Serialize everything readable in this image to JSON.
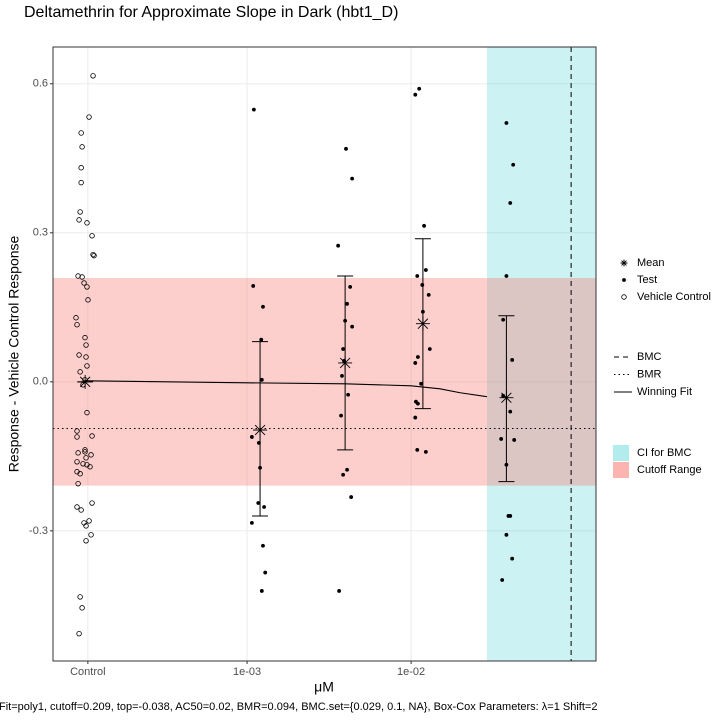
{
  "chart_data": {
    "type": "scatter",
    "title": "Deltamethrin for Approximate Slope in Dark (hbt1_D)",
    "x_label": "μM",
    "y_label": "Response - Vehicle Control Response",
    "caption": "Fit=poly1, cutoff=0.209, top=-0.038, AC50=0.02, BMR=0.094, BMC.set={0.029, 0.1, NA}, Box-Cox Parameters: λ=1 Shift=2",
    "xscale": "log",
    "xlim": [
      6.56e-05,
      0.134
    ],
    "ylim": [
      -0.562,
      0.674
    ],
    "xticks": [
      {
        "value": 0.000107,
        "label": "Control"
      },
      {
        "value": 0.001,
        "label": "1e-03"
      },
      {
        "value": 0.01,
        "label": "1e-02"
      }
    ],
    "yticks": [
      0.6,
      0.3,
      {
        "value": 0,
        "label": "0.0"
      },
      -0.3
    ],
    "grid": true,
    "bands": [
      {
        "name": "CI for BMC",
        "axis": "x",
        "range": [
          0.029,
          0.134
        ],
        "color": "#00bfc4"
      },
      {
        "name": "Cutoff Range",
        "axis": "y",
        "range": [
          -0.209,
          0.209
        ],
        "color": "#f8766d"
      }
    ],
    "reference_lines": [
      {
        "name": "BMC",
        "axis": "x",
        "value": 0.0945,
        "dash": "dashed"
      },
      {
        "name": "BMR",
        "axis": "y",
        "value": -0.094,
        "dash": "dotted"
      }
    ],
    "fit": {
      "name": "Winning Fit",
      "x": [
        0.000103,
        0.001,
        0.00396,
        0.01,
        0.015,
        0.0199,
        0.029
      ],
      "values": [
        0.002,
        -0.002,
        -0.004,
        -0.008,
        -0.014,
        -0.022,
        -0.03
      ]
    },
    "series": [
      {
        "name": "Mean",
        "marker": "asterisk",
        "color": "#000000",
        "x": [
          0.000103,
          0.0012,
          0.00396,
          0.0118,
          0.0381
        ],
        "values": [
          0,
          -0.097,
          0.038,
          0.117,
          -0.032
        ],
        "ymin": [
          0,
          -0.27,
          -0.137,
          -0.054,
          -0.201
        ],
        "ymax": [
          0,
          0.081,
          0.213,
          0.288,
          0.133
        ]
      },
      {
        "name": "Test",
        "marker": "dot",
        "color": "#000000",
        "x": [
          0.0011,
          0.00109,
          0.00125,
          0.00122,
          0.00123,
          0.00107,
          0.00118,
          0.0012,
          0.00117,
          0.00127,
          0.00107,
          0.00125,
          0.00129,
          0.00123,
          0.00359,
          0.00401,
          0.00437,
          0.00425,
          0.00407,
          0.00396,
          0.00437,
          0.00385,
          0.0039,
          0.00379,
          0.00413,
          0.00374,
          0.00407,
          0.00385,
          0.00431,
          0.00364,
          0.0112,
          0.0106,
          0.012,
          0.0123,
          0.0109,
          0.0117,
          0.0128,
          0.0118,
          0.013,
          0.011,
          0.0106,
          0.0115,
          0.0107,
          0.011,
          0.0106,
          0.0109,
          0.0123,
          0.0381,
          0.0419,
          0.0402,
          0.0381,
          0.0364,
          0.0413,
          0.0364,
          0.0402,
          0.0354,
          0.0425,
          0.0381,
          0.0402,
          0.0392,
          0.0381,
          0.0413,
          0.0359
        ],
        "values": [
          0.548,
          0.193,
          0.151,
          0.085,
          0.004,
          -0.111,
          -0.123,
          -0.173,
          -0.244,
          -0.252,
          -0.284,
          -0.33,
          -0.384,
          -0.421,
          0.274,
          0.469,
          0.409,
          0.191,
          0.157,
          0.123,
          0.111,
          0.066,
          0.042,
          0.012,
          -0.026,
          -0.068,
          -0.177,
          -0.187,
          -0.232,
          -0.421,
          0.59,
          0.578,
          0.314,
          0.225,
          0.213,
          0.195,
          0.175,
          0.141,
          0.066,
          0.05,
          0.038,
          -0.004,
          -0.04,
          -0.044,
          -0.072,
          -0.137,
          -0.141,
          0.521,
          0.437,
          0.36,
          0.213,
          0.125,
          0.044,
          -0.028,
          -0.06,
          -0.115,
          -0.117,
          -0.167,
          -0.27,
          -0.27,
          -0.308,
          -0.356,
          -0.399
        ]
      },
      {
        "name": "Vehicle Control",
        "marker": "circle",
        "color": "#000000",
        "x": [
          0.0001151,
          0.0001088,
          9.74e-05,
          9.87e-05,
          9.74e-05,
          9.74e-05,
          9.6e-05,
          9.46e-05,
          0.0001057,
          0.0001135,
          0.0001151,
          0.0001167,
          9.33e-05,
          9.87e-05,
          0.0001014,
          0.0001057,
          0.0001072,
          9.06e-05,
          9.19e-05,
          0.0001028,
          0.0001043,
          9.46e-05,
          0.0001043,
          0.0001057,
          9.6e-05,
          0.0001028,
          0.0001,
          0.0001057,
          9.19e-05,
          9.19e-05,
          0.0001135,
          0.0001028,
          0.0001028,
          9.33e-05,
          0.0001119,
          0.0001043,
          9.19e-05,
          0.0001,
          0.0001057,
          0.0001103,
          9.19e-05,
          9.6e-05,
          9.33e-05,
          0.0001135,
          9.19e-05,
          9.74e-05,
          0.0001088,
          0.0001014,
          0.0001043,
          0.0001119,
          0.0001043,
          9.6e-05,
          9.87e-05,
          9.46e-05
        ],
        "values": [
          0.616,
          0.533,
          0.501,
          0.473,
          0.431,
          0.401,
          0.342,
          0.326,
          0.32,
          0.294,
          0.256,
          0.254,
          0.213,
          0.211,
          0.199,
          0.191,
          0.165,
          0.129,
          0.115,
          0.089,
          0.074,
          0.054,
          0.05,
          0.032,
          0.02,
          0.004,
          -0.006,
          -0.062,
          -0.099,
          -0.111,
          -0.109,
          -0.137,
          -0.141,
          -0.143,
          -0.147,
          -0.153,
          -0.161,
          -0.165,
          -0.167,
          -0.171,
          -0.181,
          -0.185,
          -0.205,
          -0.244,
          -0.252,
          -0.258,
          -0.28,
          -0.284,
          -0.29,
          -0.308,
          -0.32,
          -0.433,
          -0.455,
          -0.507
        ]
      }
    ]
  }
}
